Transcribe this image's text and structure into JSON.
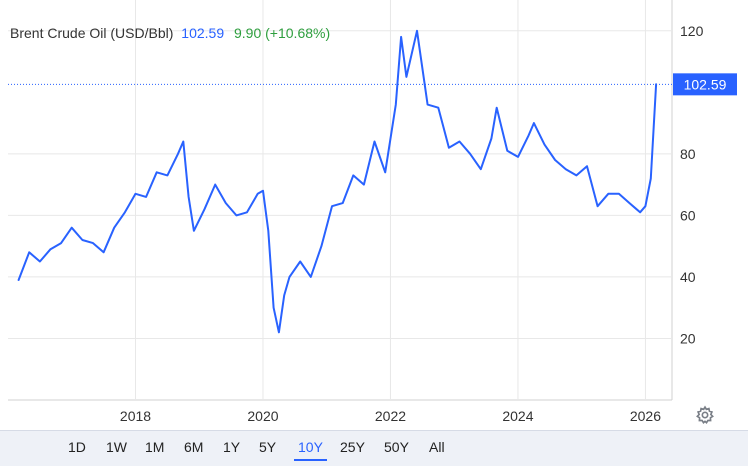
{
  "header": {
    "instrument": "Brent Crude Oil (USD/Bbl)",
    "price": "102.59",
    "change": "9.90 (+10.68%)"
  },
  "price_tag": "102.59",
  "colors": {
    "line": "#2962ff",
    "price": "#2962ff",
    "change": "#2e9e3e",
    "grid": "#e8e8e8",
    "axis_text": "#333333"
  },
  "range_selector": {
    "selected": "10Y",
    "options": [
      "1D",
      "1W",
      "1M",
      "6M",
      "1Y",
      "5Y",
      "10Y",
      "25Y",
      "50Y",
      "All"
    ]
  },
  "settings_icon": "gear-icon",
  "chart_data": {
    "type": "line",
    "series": [
      {
        "x": [
          "2016-03",
          "2016-05",
          "2016-07",
          "2016-09",
          "2016-11",
          "2017-01",
          "2017-03",
          "2017-05",
          "2017-07",
          "2017-09",
          "2017-11",
          "2018-01",
          "2018-03",
          "2018-05",
          "2018-07",
          "2018-09",
          "2018-10",
          "2018-11",
          "2018-12",
          "2019-02",
          "2019-04",
          "2019-06",
          "2019-08",
          "2019-10",
          "2019-12",
          "2020-01",
          "2020-02",
          "2020-03",
          "2020-04",
          "2020-05",
          "2020-06",
          "2020-08",
          "2020-10",
          "2020-12",
          "2021-02",
          "2021-04",
          "2021-06",
          "2021-08",
          "2021-10",
          "2021-12",
          "2022-02",
          "2022-03",
          "2022-04",
          "2022-06",
          "2022-08",
          "2022-10",
          "2022-12",
          "2023-02",
          "2023-04",
          "2023-06",
          "2023-08",
          "2023-09",
          "2023-11",
          "2024-01",
          "2024-03",
          "2024-04",
          "2024-06",
          "2024-08",
          "2024-10",
          "2024-12",
          "2025-02",
          "2025-04",
          "2025-06",
          "2025-08",
          "2025-10",
          "2025-12",
          "2026-01",
          "2026-02",
          "2026-03"
        ],
        "y": [
          39,
          48,
          45,
          49,
          51,
          56,
          52,
          51,
          48,
          56,
          61,
          67,
          66,
          74,
          73,
          80,
          84,
          66,
          55,
          62,
          70,
          64,
          60,
          61,
          67,
          68,
          55,
          30,
          22,
          34,
          40,
          45,
          40,
          50,
          63,
          64,
          73,
          70,
          84,
          74,
          96,
          118,
          105,
          120,
          96,
          95,
          82,
          84,
          80,
          75,
          85,
          95,
          81,
          79,
          86,
          90,
          83,
          78,
          75,
          73,
          76,
          63,
          67,
          67,
          64,
          61,
          63,
          72,
          102.59
        ]
      }
    ],
    "xlim": [
      "2016-01",
      "2026-06"
    ],
    "ylim": [
      0,
      130
    ],
    "x_ticks": [
      "2018",
      "2020",
      "2022",
      "2024",
      "2026"
    ],
    "y_ticks": [
      "20",
      "40",
      "60",
      "80",
      "120"
    ],
    "grid": true,
    "last_value": 102.59
  }
}
